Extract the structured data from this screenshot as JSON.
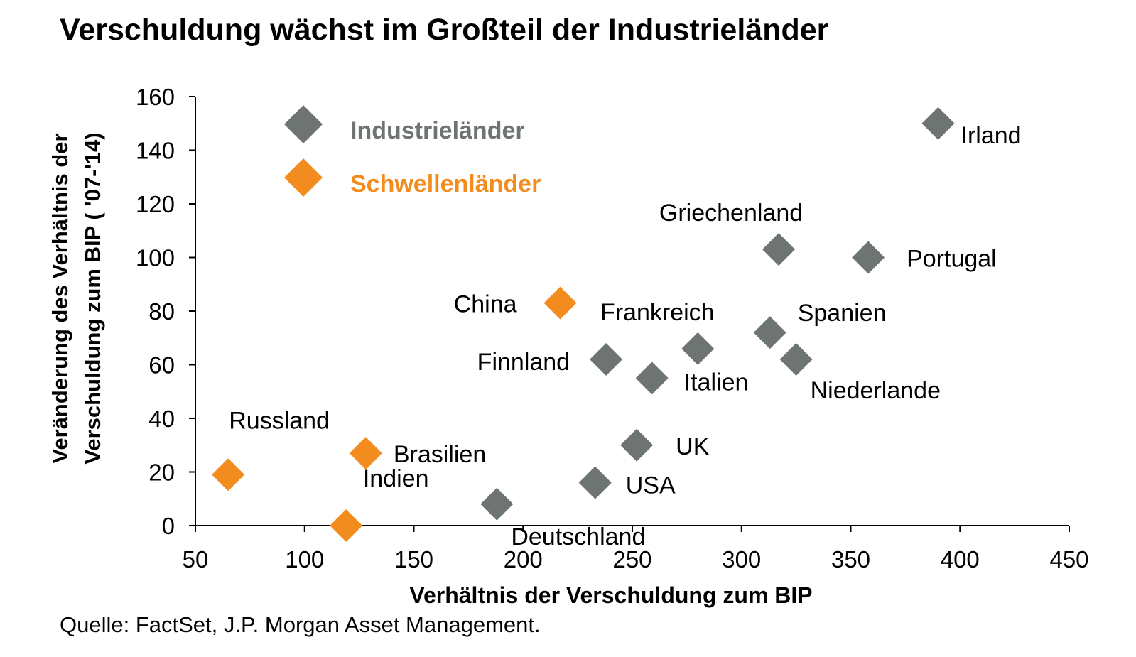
{
  "title": "Verschuldung wächst im Großteil der Industrieländer",
  "source": "Quelle: FactSet, J.P. Morgan Asset Management.",
  "colors": {
    "industrial": "#6D7472",
    "emerging": "#F28C1E",
    "axis": "#000000"
  },
  "chart_data": {
    "type": "scatter",
    "title": "Verschuldung wächst im Großteil der Industrieländer",
    "xlabel": "Verhältnis der Verschuldung zum BIP",
    "ylabel_lines": [
      "Veränderung des Verhältnis der",
      "Verschuldung zum BIP ( '07-'14)"
    ],
    "xlim": [
      50,
      450
    ],
    "ylim": [
      0,
      160
    ],
    "xticks": [
      50,
      100,
      150,
      200,
      250,
      300,
      350,
      400,
      450
    ],
    "yticks": [
      0,
      20,
      40,
      60,
      80,
      100,
      120,
      140,
      160
    ],
    "grid": false,
    "legend": [
      {
        "name": "Industrieländer",
        "group": "industrial"
      },
      {
        "name": "Schwellenländer",
        "group": "emerging"
      }
    ],
    "series": [
      {
        "name": "Industrieländer",
        "group": "industrial",
        "points": [
          {
            "label": "Irland",
            "x": 390,
            "y": 150,
            "label_pos": "right"
          },
          {
            "label": "Griechenland",
            "x": 317,
            "y": 103,
            "label_pos": "above-left"
          },
          {
            "label": "Portugal",
            "x": 358,
            "y": 100,
            "label_pos": "right"
          },
          {
            "label": "Frankreich",
            "x": 280,
            "y": 66,
            "label_pos": "above-left"
          },
          {
            "label": "Spanien",
            "x": 313,
            "y": 72,
            "label_pos": "above-right"
          },
          {
            "label": "Finnland",
            "x": 238,
            "y": 62,
            "label_pos": "left"
          },
          {
            "label": "Niederlande",
            "x": 325,
            "y": 62,
            "label_pos": "below-right"
          },
          {
            "label": "Italien",
            "x": 259,
            "y": 55,
            "label_pos": "right"
          },
          {
            "label": "UK",
            "x": 252,
            "y": 30,
            "label_pos": "right"
          },
          {
            "label": "USA",
            "x": 233,
            "y": 16,
            "label_pos": "right"
          },
          {
            "label": "Deutschland",
            "x": 188,
            "y": 8,
            "label_pos": "below-right"
          }
        ]
      },
      {
        "name": "Schwellenländer",
        "group": "emerging",
        "points": [
          {
            "label": "China",
            "x": 217,
            "y": 83,
            "label_pos": "left"
          },
          {
            "label": "Russland",
            "x": 65,
            "y": 19,
            "label_pos": "above"
          },
          {
            "label": "Brasilien",
            "x": 128,
            "y": 27,
            "label_pos": "right"
          },
          {
            "label": "Indien",
            "x": 119,
            "y": 0,
            "label_pos": "above"
          }
        ]
      }
    ]
  }
}
